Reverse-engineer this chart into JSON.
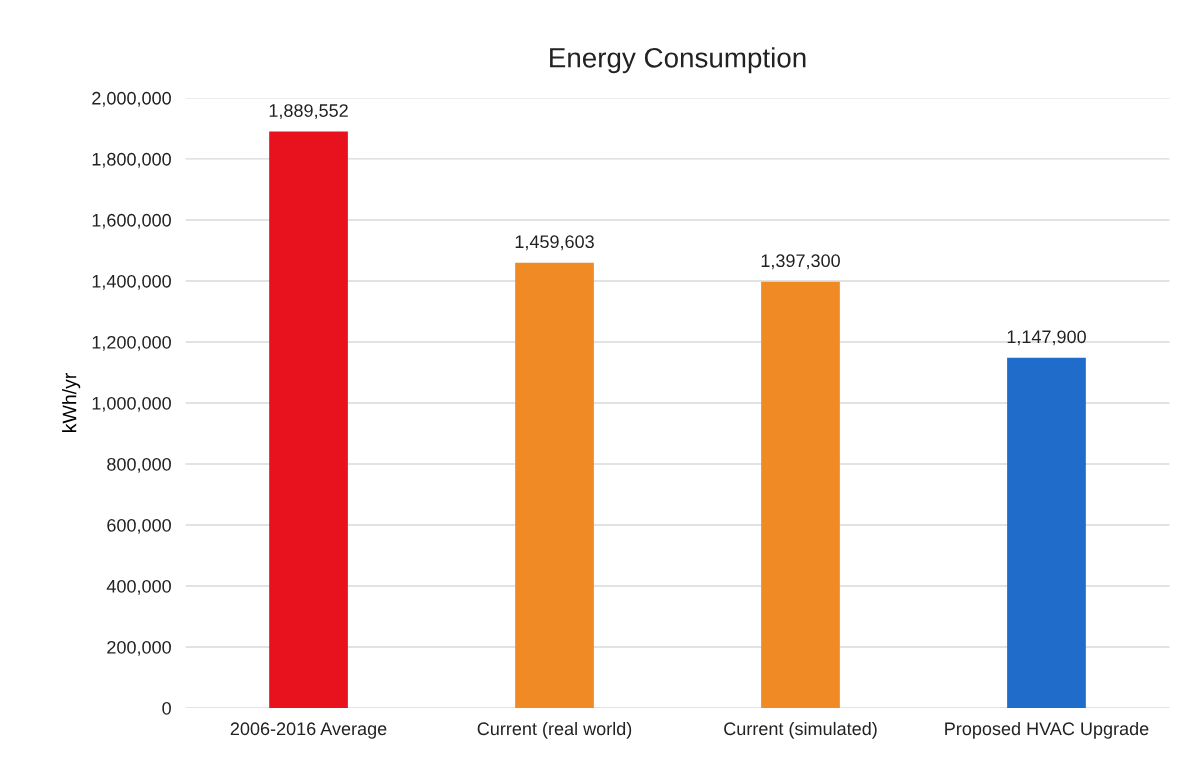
{
  "chart_data": {
    "type": "bar",
    "title": "Energy Consumption",
    "ylabel": "kWh/yr",
    "categories": [
      "2006-2016 Average",
      "Current (real world)",
      "Current (simulated)",
      "Proposed HVAC Upgrade"
    ],
    "values": [
      1889552,
      1459603,
      1397300,
      1147900
    ],
    "colors": [
      "#e8121f",
      "#f08a24",
      "#f08a24",
      "#1f6ccb"
    ],
    "value_labels": [
      "1,889,552",
      "1,459,603",
      "1,397,300",
      "1,147,900"
    ],
    "ylim": [
      0,
      2000000
    ],
    "yticks": [
      {
        "value": 0,
        "label": "0"
      },
      {
        "value": 200000,
        "label": "200,000"
      },
      {
        "value": 400000,
        "label": "400,000"
      },
      {
        "value": 600000,
        "label": "600,000"
      },
      {
        "value": 800000,
        "label": "800,000"
      },
      {
        "value": 1000000,
        "label": "1,000,000"
      },
      {
        "value": 1200000,
        "label": "1,200,000"
      },
      {
        "value": 1400000,
        "label": "1,400,000"
      },
      {
        "value": 1600000,
        "label": "1,600,000"
      },
      {
        "value": 1800000,
        "label": "1,800,000"
      },
      {
        "value": 2000000,
        "label": "2,000,000"
      }
    ],
    "grid": "y",
    "legend": false
  }
}
